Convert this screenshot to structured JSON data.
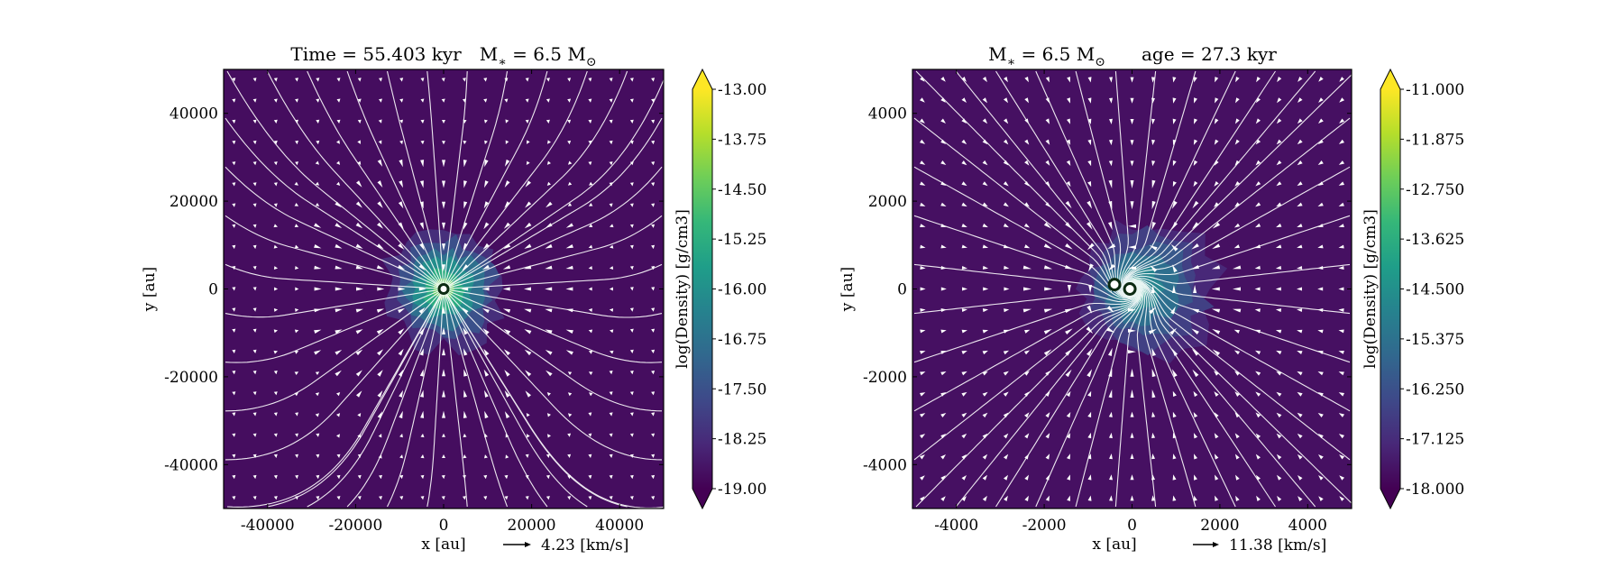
{
  "chart_data": [
    {
      "type": "heatmap",
      "title_parts": [
        "Time = 55.403 kyr",
        "M",
        "∗",
        " = 6.5 M",
        "⊙"
      ],
      "xlabel": "x [au]",
      "ylabel": "y [au]",
      "xlim": [
        -50000,
        50000
      ],
      "ylim": [
        -50000,
        50000
      ],
      "xticks": [
        -40000,
        -20000,
        0,
        20000,
        40000
      ],
      "yticks": [
        -40000,
        -20000,
        0,
        20000,
        40000
      ],
      "xtick_labels": [
        "-40000",
        "-20000",
        "0",
        "20000",
        "40000"
      ],
      "ytick_labels": [
        "-40000",
        "-20000",
        "0",
        "20000",
        "40000"
      ],
      "colorbar": {
        "label": "log(Density) [g/cm3]",
        "range": [
          -19.0,
          -13.0
        ],
        "extend": "both",
        "ticks": [
          -13.0,
          -13.75,
          -14.5,
          -15.25,
          -16.0,
          -16.75,
          -17.5,
          -18.25,
          -19.0
        ],
        "tick_labels": [
          "-13.00",
          "-13.75",
          "-14.50",
          "-15.25",
          "-16.00",
          "-16.75",
          "-17.50",
          "-18.25",
          "-19.00"
        ]
      },
      "velocity_key": {
        "value": 4.23,
        "label": "4.23 [km/s]"
      },
      "background_log_density": -18.8,
      "density_peak_log": -14.5,
      "density_core_radius_au": 16000,
      "flow_pattern": "converging streamlines toward a single central source",
      "sinks": [
        {
          "x": 0,
          "y": 0
        }
      ]
    },
    {
      "type": "heatmap",
      "title_parts": [
        "M",
        "∗",
        " = 6.5 M",
        "⊙",
        "age = 27.3 kyr"
      ],
      "xlabel": "x [au]",
      "ylabel": "y [au]",
      "xlim": [
        -5000,
        5000
      ],
      "ylim": [
        -5000,
        5000
      ],
      "xticks": [
        -4000,
        -2000,
        0,
        2000,
        4000
      ],
      "yticks": [
        -4000,
        -2000,
        0,
        2000,
        4000
      ],
      "xtick_labels": [
        "-4000",
        "-2000",
        "0",
        "2000",
        "4000"
      ],
      "ytick_labels": [
        "-4000",
        "-2000",
        "0",
        "2000",
        "4000"
      ],
      "colorbar": {
        "label": "log(Density) [g/cm3]",
        "range": [
          -18.0,
          -11.0
        ],
        "extend": "both",
        "ticks": [
          -11.0,
          -11.875,
          -12.75,
          -13.625,
          -14.5,
          -15.375,
          -16.25,
          -17.125,
          -18.0
        ],
        "tick_labels": [
          "-11.000",
          "-11.875",
          "-12.750",
          "-13.625",
          "-14.500",
          "-15.375",
          "-16.250",
          "-17.125",
          "-18.000"
        ]
      },
      "velocity_key": {
        "value": 11.38,
        "label": "11.38 [km/s]"
      },
      "background_log_density": -17.7,
      "density_peak_log": -14.2,
      "density_core_radius_au": 1900,
      "flow_pattern": "inflow toward a central rotating disk with two sinks",
      "sinks": [
        {
          "x": -400,
          "y": 100
        },
        {
          "x": -50,
          "y": 0
        }
      ]
    }
  ],
  "colors": {
    "viridis": [
      "#440154",
      "#482878",
      "#3e4989",
      "#31688e",
      "#26828e",
      "#1f9e89",
      "#35b779",
      "#6ece58",
      "#b5de2b",
      "#fde725"
    ],
    "streamline": "#ffffff",
    "sink_fill": "#ffffff",
    "sink_ring": "#0b2a12"
  }
}
